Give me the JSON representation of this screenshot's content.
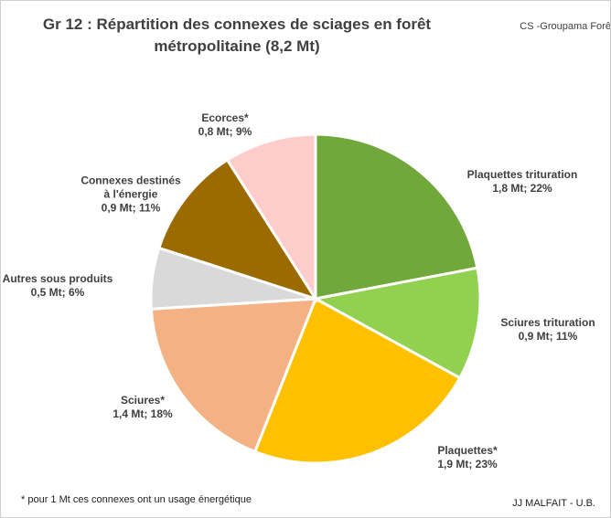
{
  "chart_data": {
    "type": "pie",
    "title": "Gr 12 :  Répartition des connexes de sciages en forêt métropolitaine (8,2 Mt)",
    "source": "CS -Groupama Forêt",
    "footnote": "* pour 1 Mt ces connexes ont un usage énergétique",
    "author": "JJ MALFAIT - U.B.",
    "categories": [
      "Plaquettes trituration",
      "Sciures trituration",
      "Plaquettes*",
      "Sciures*",
      "Autres sous produits",
      "Connexes destinés à l'énergie",
      "Ecorces*"
    ],
    "values": [
      22,
      11,
      23,
      18,
      6,
      11,
      9
    ],
    "value_labels": [
      "1,8 Mt; 22%",
      "0,9 Mt; 11%",
      "1,9 Mt; 23%",
      "1,4 Mt; 18%",
      "0,5 Mt; 6%",
      "0,9 Mt; 11%",
      "0,8 Mt; 9%"
    ],
    "colors": [
      "#70a83c",
      "#92d050",
      "#ffc000",
      "#f4b183",
      "#d9d9d9",
      "#9c6b00",
      "#ffcccc"
    ]
  }
}
